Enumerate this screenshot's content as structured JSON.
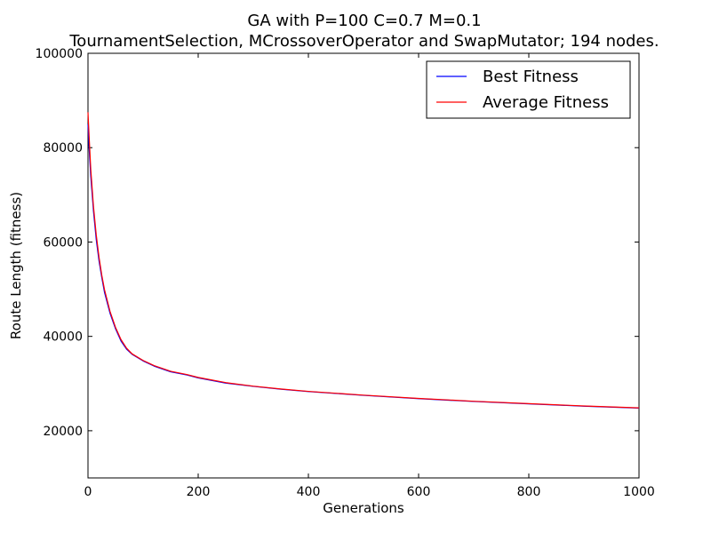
{
  "chart_data": {
    "type": "line",
    "title_lines": [
      "GA with P=100 C=0.7 M=0.1",
      "TournamentSelection, MCrossoverOperator and SwapMutator; 194 nodes."
    ],
    "xlabel": "Generations",
    "ylabel": "Route Length (fitness)",
    "xlim": [
      0,
      1000
    ],
    "ylim": [
      10000,
      100000
    ],
    "xticks": [
      0,
      200,
      400,
      600,
      800,
      1000
    ],
    "yticks": [
      20000,
      40000,
      60000,
      80000,
      100000
    ],
    "grid": false,
    "legend_position": "top-right",
    "x": [
      0,
      2,
      5,
      10,
      15,
      20,
      25,
      30,
      40,
      50,
      60,
      70,
      80,
      100,
      120,
      150,
      180,
      200,
      250,
      300,
      350,
      400,
      450,
      500,
      600,
      700,
      800,
      900,
      1000
    ],
    "series": [
      {
        "name": "Best Fitness",
        "color": "#0000ff",
        "values": [
          85000,
          80000,
          74000,
          66500,
          60500,
          56000,
          52500,
          49300,
          44900,
          41600,
          39000,
          37300,
          36200,
          34800,
          33700,
          32500,
          31800,
          31200,
          30100,
          29400,
          28800,
          28300,
          27900,
          27500,
          26800,
          26200,
          25700,
          25200,
          24800
        ]
      },
      {
        "name": "Average Fitness",
        "color": "#ff0000",
        "values": [
          87500,
          82500,
          75500,
          67500,
          61500,
          56800,
          53000,
          49900,
          45300,
          41900,
          39300,
          37500,
          36300,
          34900,
          33800,
          32600,
          31900,
          31300,
          30200,
          29450,
          28850,
          28350,
          27950,
          27550,
          26850,
          26250,
          25750,
          25250,
          24850
        ]
      }
    ]
  }
}
